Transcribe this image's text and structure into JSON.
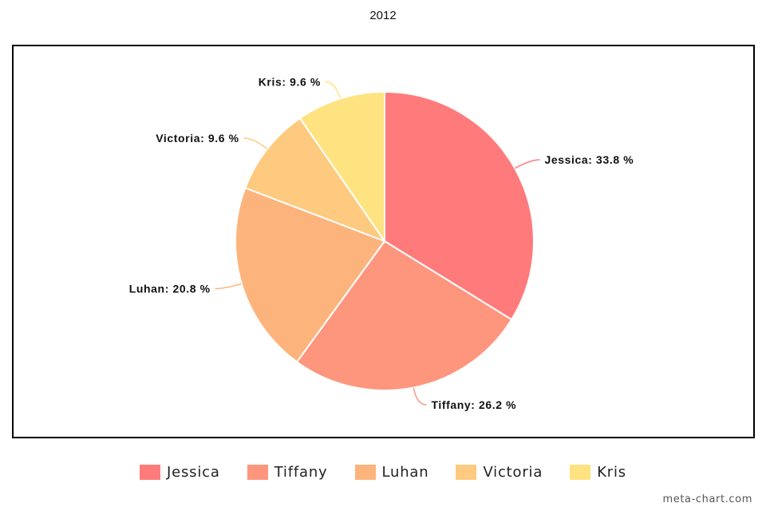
{
  "chart_data": {
    "type": "pie",
    "title": "2012",
    "slices": [
      {
        "name": "Jessica",
        "value": 33.8,
        "label": "Jessica: 33.8 %",
        "color": "#FF7B7B"
      },
      {
        "name": "Tiffany",
        "value": 26.2,
        "label": "Tiffany: 26.2 %",
        "color": "#FE967D"
      },
      {
        "name": "Luhan",
        "value": 20.8,
        "label": "Luhan: 20.8 %",
        "color": "#FDB47C"
      },
      {
        "name": "Victoria",
        "value": 9.6,
        "label": "Victoria: 9.6 %",
        "color": "#FECA7F"
      },
      {
        "name": "Kris",
        "value": 9.6,
        "label": "Kris: 9.6 %",
        "color": "#FFE381"
      }
    ],
    "legend_position": "bottom",
    "start_angle": "top",
    "direction": "clockwise"
  },
  "watermark": "meta-chart.com"
}
